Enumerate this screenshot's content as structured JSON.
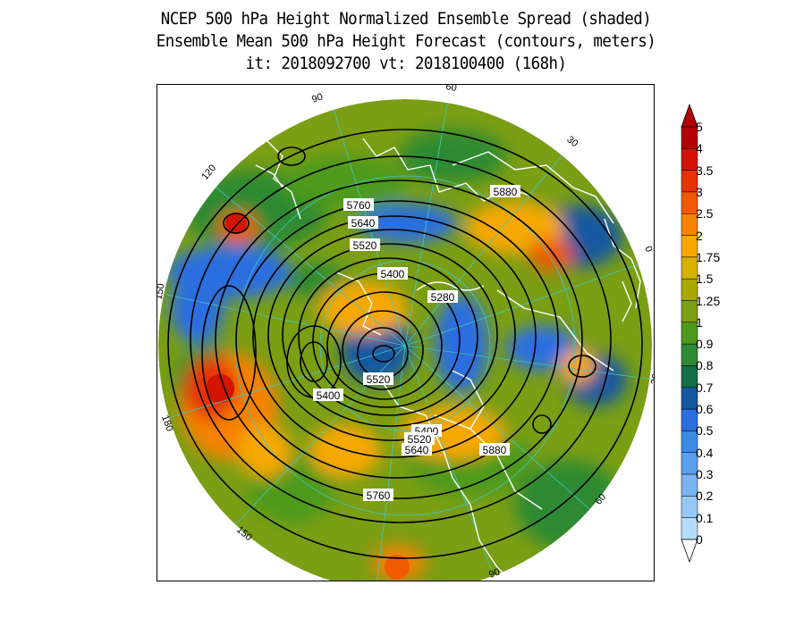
{
  "title": {
    "line1": "NCEP 500 hPa Height Normalized Ensemble Spread (shaded)",
    "line2": "Ensemble Mean 500 hPa Height Forecast (contours, meters)",
    "line3": "it: 2018092700      vt: 2018100400 (168h)"
  },
  "map": {
    "projection": "polar stereographic, north pole",
    "longitude_labels": [
      "90",
      "60",
      "30",
      "0",
      "30",
      "60",
      "90",
      "120",
      "150",
      "180",
      "150",
      "120"
    ],
    "contour_labels": [
      "5760",
      "5640",
      "5520",
      "5400",
      "5280",
      "5880",
      "5520",
      "5400",
      "5400",
      "5520",
      "5640",
      "5880",
      "5760"
    ],
    "colors": {
      "coastline": "#ffffff",
      "contour": "#000000",
      "graticule": "#3cc8c8"
    }
  },
  "colorbar": {
    "labels": [
      "5",
      "4",
      "3.5",
      "3",
      "2.5",
      "2",
      "1.75",
      "1.5",
      "1.25",
      "1",
      "0.9",
      "0.8",
      "0.7",
      "0.6",
      "0.5",
      "0.4",
      "0.3",
      "0.2",
      "0.1",
      "0"
    ],
    "colors": [
      "#b40000",
      "#d21400",
      "#e63200",
      "#f05a00",
      "#f58200",
      "#f7a800",
      "#d7b000",
      "#a8a800",
      "#7a9e14",
      "#4e9a1e",
      "#2e8a32",
      "#146e46",
      "#1458a0",
      "#2a6ee0",
      "#3c8ce6",
      "#5aa0ec",
      "#78b4f0",
      "#96c8f5",
      "#b4dcfa"
    ]
  }
}
